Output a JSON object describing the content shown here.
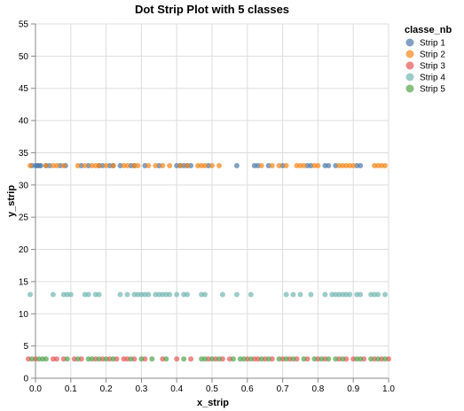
{
  "chart_data": {
    "type": "scatter",
    "title": "Dot Strip Plot with 5 classes",
    "xlabel": "x_strip",
    "ylabel": "y_strip",
    "xlim": [
      0,
      1
    ],
    "ylim": [
      0,
      55
    ],
    "x_ticks": [
      "0.0",
      "0.1",
      "0.2",
      "0.3",
      "0.4",
      "0.5",
      "0.6",
      "0.7",
      "0.8",
      "0.9",
      "1.0"
    ],
    "y_ticks": [
      "0",
      "5",
      "10",
      "15",
      "20",
      "25",
      "30",
      "35",
      "40",
      "45",
      "50",
      "55"
    ],
    "grid": true,
    "legend": {
      "title": "classe_nb",
      "position": "right"
    },
    "series": [
      {
        "name": "Strip 1",
        "color": "#4c78a8",
        "y": 33,
        "x": [
          -0.01,
          0.0,
          0.005,
          0.01,
          0.015,
          0.03,
          0.04,
          0.07,
          0.085,
          0.13,
          0.15,
          0.18,
          0.19,
          0.21,
          0.22,
          0.24,
          0.27,
          0.28,
          0.31,
          0.35,
          0.4,
          0.41,
          0.42,
          0.43,
          0.44,
          0.49,
          0.57,
          0.62,
          0.63,
          0.66,
          0.7,
          0.77,
          0.78,
          0.82,
          0.83,
          0.85,
          0.91,
          0.92
        ]
      },
      {
        "name": "Strip 2",
        "color": "#f58518",
        "y": 33,
        "x": [
          -0.015,
          0.03,
          0.05,
          0.06,
          0.08,
          0.12,
          0.14,
          0.16,
          0.17,
          0.18,
          0.2,
          0.22,
          0.25,
          0.26,
          0.28,
          0.29,
          0.32,
          0.34,
          0.36,
          0.38,
          0.41,
          0.43,
          0.46,
          0.47,
          0.48,
          0.5,
          0.52,
          0.64,
          0.67,
          0.69,
          0.71,
          0.74,
          0.75,
          0.76,
          0.79,
          0.8,
          0.86,
          0.87,
          0.88,
          0.89,
          0.9,
          0.96,
          0.97,
          0.98,
          0.99
        ]
      },
      {
        "name": "Strip 3",
        "color": "#e45756",
        "y": 3,
        "x": [
          -0.02,
          0.0,
          0.05,
          0.06,
          0.08,
          0.11,
          0.13,
          0.17,
          0.19,
          0.21,
          0.23,
          0.25,
          0.26,
          0.28,
          0.31,
          0.36,
          0.4,
          0.44,
          0.49,
          0.51,
          0.53,
          0.55,
          0.6,
          0.62,
          0.63,
          0.65,
          0.67,
          0.7,
          0.72,
          0.74,
          0.77,
          0.8,
          0.82,
          0.86,
          0.88,
          0.9,
          0.93,
          0.96,
          0.98,
          1.0
        ]
      },
      {
        "name": "Strip 4",
        "color": "#72b7b2",
        "y": 13,
        "x": [
          -0.015,
          0.05,
          0.08,
          0.09,
          0.1,
          0.14,
          0.15,
          0.17,
          0.18,
          0.24,
          0.26,
          0.28,
          0.29,
          0.3,
          0.31,
          0.32,
          0.34,
          0.35,
          0.36,
          0.37,
          0.38,
          0.4,
          0.42,
          0.43,
          0.47,
          0.48,
          0.53,
          0.57,
          0.61,
          0.71,
          0.73,
          0.75,
          0.78,
          0.82,
          0.84,
          0.85,
          0.86,
          0.87,
          0.88,
          0.89,
          0.91,
          0.92,
          0.95,
          0.96,
          0.97,
          0.99
        ]
      },
      {
        "name": "Strip 5",
        "color": "#54a24b",
        "y": 3,
        "x": [
          -0.01,
          0.01,
          0.02,
          0.03,
          0.09,
          0.12,
          0.15,
          0.16,
          0.18,
          0.2,
          0.22,
          0.27,
          0.3,
          0.33,
          0.37,
          0.42,
          0.47,
          0.48,
          0.5,
          0.52,
          0.56,
          0.58,
          0.59,
          0.61,
          0.64,
          0.66,
          0.69,
          0.71,
          0.73,
          0.76,
          0.79,
          0.81,
          0.83,
          0.85,
          0.87,
          0.91,
          0.92,
          0.95,
          0.97,
          0.99
        ]
      }
    ]
  }
}
